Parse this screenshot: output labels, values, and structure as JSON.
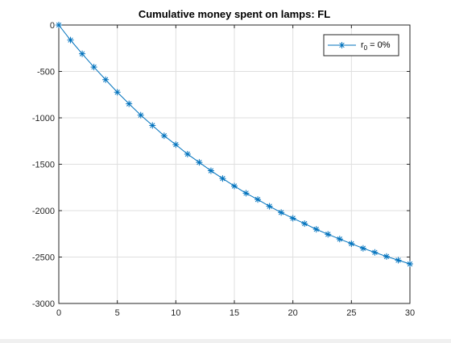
{
  "figure": {
    "background": "#ffffff"
  },
  "chart_data": {
    "type": "line",
    "title": "Cumulative money spent on lamps: FL",
    "xlabel": "",
    "ylabel": "",
    "xlim": [
      0,
      30
    ],
    "ylim": [
      -3000,
      0
    ],
    "x_ticks": [
      0,
      5,
      10,
      15,
      20,
      25,
      30
    ],
    "y_ticks": [
      0,
      -500,
      -1000,
      -1500,
      -2000,
      -2500,
      -3000
    ],
    "x_tick_labels": [
      "0",
      "5",
      "10",
      "15",
      "20",
      "25",
      "30"
    ],
    "y_tick_labels": [
      "0",
      "-500",
      "-1000",
      "-1500",
      "-2000",
      "-2500",
      "-3000"
    ],
    "grid": true,
    "legend_position": "top-right",
    "series": [
      {
        "name_main": "r",
        "name_sub": "0",
        "name_suffix": " = 0%",
        "color": "#0072bd",
        "marker": "asterisk",
        "x": [
          0,
          1,
          2,
          3,
          4,
          5,
          6,
          7,
          8,
          9,
          10,
          11,
          12,
          13,
          14,
          15,
          16,
          17,
          18,
          19,
          20,
          21,
          22,
          23,
          24,
          25,
          26,
          27,
          28,
          29,
          30
        ],
        "y": [
          0,
          -162,
          -310,
          -453,
          -589,
          -724,
          -849,
          -971,
          -1082,
          -1193,
          -1289,
          -1391,
          -1480,
          -1570,
          -1654,
          -1735,
          -1812,
          -1880,
          -1953,
          -2020,
          -2082,
          -2140,
          -2201,
          -2255,
          -2306,
          -2356,
          -2406,
          -2450,
          -2494,
          -2534,
          -2574
        ]
      }
    ]
  }
}
